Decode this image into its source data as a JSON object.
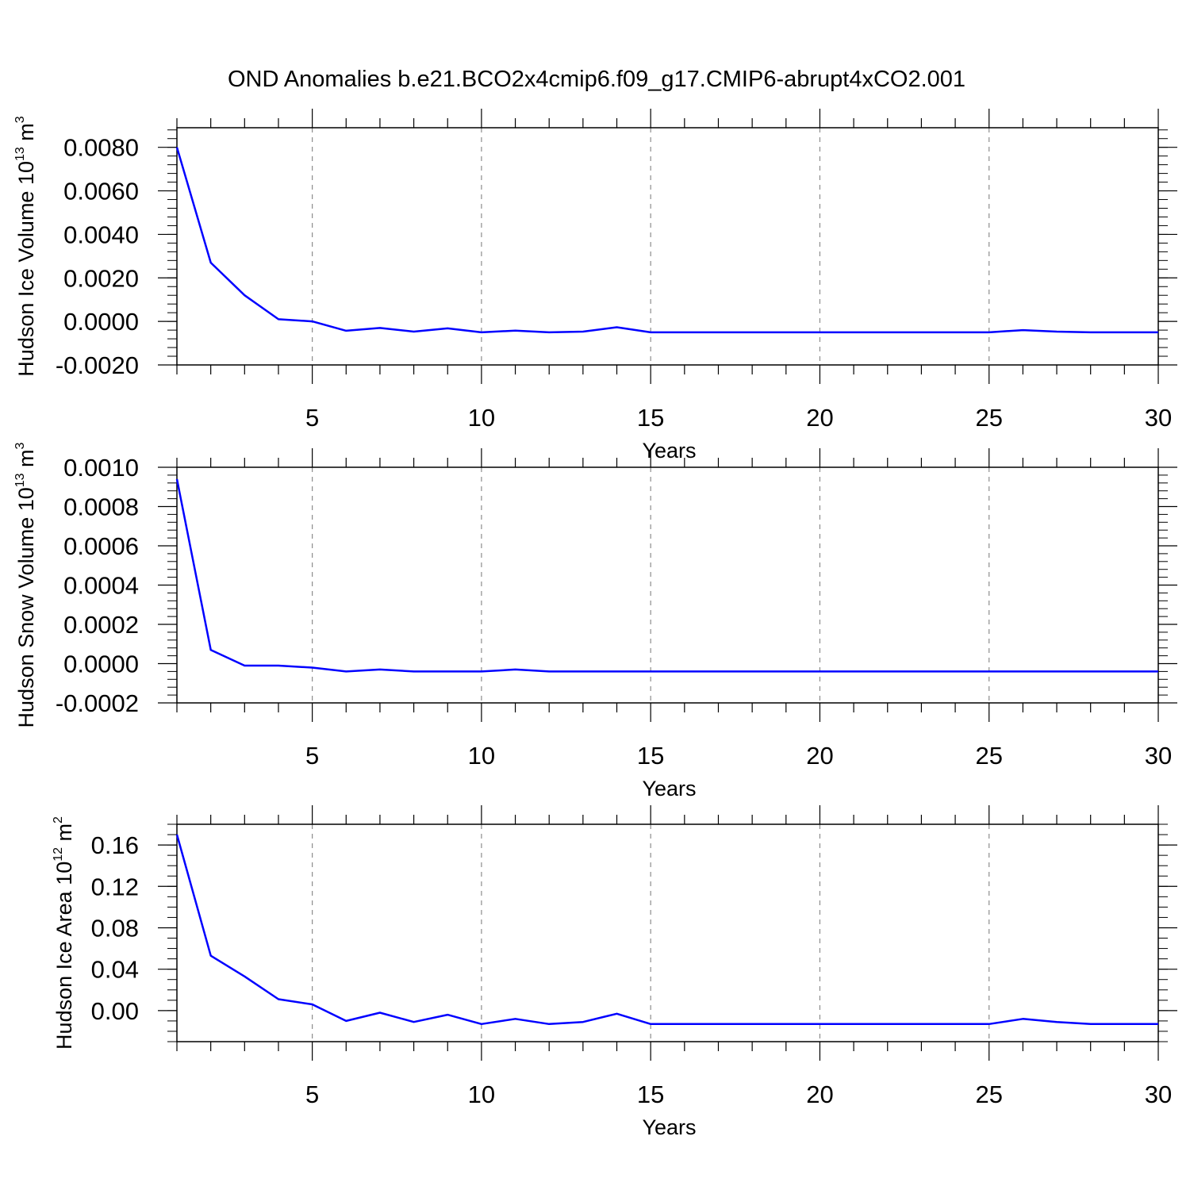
{
  "title": "OND Anomalies b.e21.BCO2x4cmip6.f09_g17.CMIP6-abrupt4xCO2.001",
  "colors": {
    "line": "#0000ff",
    "axis": "#000000",
    "grid": "#8c8c8c"
  },
  "chart_data": [
    {
      "type": "line",
      "id": "ice-volume",
      "title": "",
      "xlabel": "Years",
      "ylabel": {
        "text": "Hudson Ice Volume 10",
        "sup": "13",
        "unit": " m",
        "unit_sup": "3"
      },
      "xlim": [
        1,
        30
      ],
      "ylim": [
        -0.002,
        0.0089
      ],
      "x_ticks": [
        5,
        10,
        15,
        20,
        25,
        30
      ],
      "x_tick_labels": [
        "5",
        "10",
        "15",
        "20",
        "25",
        "30"
      ],
      "y_ticks": [
        0.008,
        0.006,
        0.004,
        0.002,
        0.0,
        -0.002
      ],
      "y_tick_labels": [
        "0.0080",
        "0.0060",
        "0.0040",
        "0.0020",
        "0.0000",
        "-0.0020"
      ],
      "y_minor_step": 0.0004,
      "grid": "vertical dashed at major x ticks",
      "series": [
        {
          "name": "Hudson Ice Volume anomaly",
          "x": [
            1,
            2,
            3,
            4,
            5,
            6,
            7,
            8,
            9,
            10,
            11,
            12,
            13,
            14,
            15,
            16,
            17,
            18,
            19,
            20,
            21,
            22,
            23,
            24,
            25,
            26,
            27,
            28,
            29,
            30
          ],
          "values": [
            0.008,
            0.0027,
            0.0012,
            0.0001,
            0.0,
            -0.00043,
            -0.0003,
            -0.00047,
            -0.00032,
            -0.0005,
            -0.00042,
            -0.0005,
            -0.00047,
            -0.00027,
            -0.0005,
            -0.0005,
            -0.0005,
            -0.0005,
            -0.0005,
            -0.0005,
            -0.0005,
            -0.0005,
            -0.0005,
            -0.0005,
            -0.0005,
            -0.0004,
            -0.00047,
            -0.0005,
            -0.0005,
            -0.0005
          ]
        }
      ]
    },
    {
      "type": "line",
      "id": "snow-volume",
      "title": "",
      "xlabel": "Years",
      "ylabel": {
        "text": "Hudson Snow Volume 10",
        "sup": "13",
        "unit": " m",
        "unit_sup": "3"
      },
      "xlim": [
        1,
        30
      ],
      "ylim": [
        -0.0002,
        0.001
      ],
      "x_ticks": [
        5,
        10,
        15,
        20,
        25,
        30
      ],
      "x_tick_labels": [
        "5",
        "10",
        "15",
        "20",
        "25",
        "30"
      ],
      "y_ticks": [
        0.001,
        0.0008,
        0.0006,
        0.0004,
        0.0002,
        0.0,
        -0.0002
      ],
      "y_tick_labels": [
        "0.0010",
        "0.0008",
        "0.0006",
        "0.0004",
        "0.0002",
        "0.0000",
        "-0.0002"
      ],
      "y_minor_step": 4e-05,
      "grid": "vertical dashed at major x ticks",
      "series": [
        {
          "name": "Hudson Snow Volume anomaly",
          "x": [
            1,
            2,
            3,
            4,
            5,
            6,
            7,
            8,
            9,
            10,
            11,
            12,
            13,
            14,
            15,
            16,
            17,
            18,
            19,
            20,
            21,
            22,
            23,
            24,
            25,
            26,
            27,
            28,
            29,
            30
          ],
          "values": [
            0.00094,
            7e-05,
            -1e-05,
            -1e-05,
            -2e-05,
            -4e-05,
            -3e-05,
            -4e-05,
            -4e-05,
            -4e-05,
            -3e-05,
            -4e-05,
            -4e-05,
            -4e-05,
            -4e-05,
            -4e-05,
            -4e-05,
            -4e-05,
            -4e-05,
            -4e-05,
            -4e-05,
            -4e-05,
            -4e-05,
            -4e-05,
            -4e-05,
            -4e-05,
            -4e-05,
            -4e-05,
            -4e-05,
            -4e-05
          ]
        }
      ]
    },
    {
      "type": "line",
      "id": "ice-area",
      "title": "",
      "xlabel": "Years",
      "ylabel": {
        "text": "Hudson Ice Area 10",
        "sup": "12",
        "unit": " m",
        "unit_sup": "2"
      },
      "xlim": [
        1,
        30
      ],
      "ylim": [
        -0.03,
        0.18
      ],
      "x_ticks": [
        5,
        10,
        15,
        20,
        25,
        30
      ],
      "x_tick_labels": [
        "5",
        "10",
        "15",
        "20",
        "25",
        "30"
      ],
      "y_ticks": [
        0.16,
        0.12,
        0.08,
        0.04,
        0.0
      ],
      "y_tick_labels": [
        "0.16",
        "0.12",
        "0.08",
        "0.04",
        "0.00"
      ],
      "y_minor_step": 0.01,
      "grid": "vertical dashed at major x ticks",
      "series": [
        {
          "name": "Hudson Ice Area anomaly",
          "x": [
            1,
            2,
            3,
            4,
            5,
            6,
            7,
            8,
            9,
            10,
            11,
            12,
            13,
            14,
            15,
            16,
            17,
            18,
            19,
            20,
            21,
            22,
            23,
            24,
            25,
            26,
            27,
            28,
            29,
            30
          ],
          "values": [
            0.17,
            0.053,
            0.033,
            0.011,
            0.006,
            -0.01,
            -0.002,
            -0.011,
            -0.004,
            -0.013,
            -0.008,
            -0.013,
            -0.011,
            -0.003,
            -0.013,
            -0.013,
            -0.013,
            -0.013,
            -0.013,
            -0.013,
            -0.013,
            -0.013,
            -0.013,
            -0.013,
            -0.013,
            -0.008,
            -0.011,
            -0.013,
            -0.013,
            -0.013
          ]
        }
      ]
    }
  ]
}
